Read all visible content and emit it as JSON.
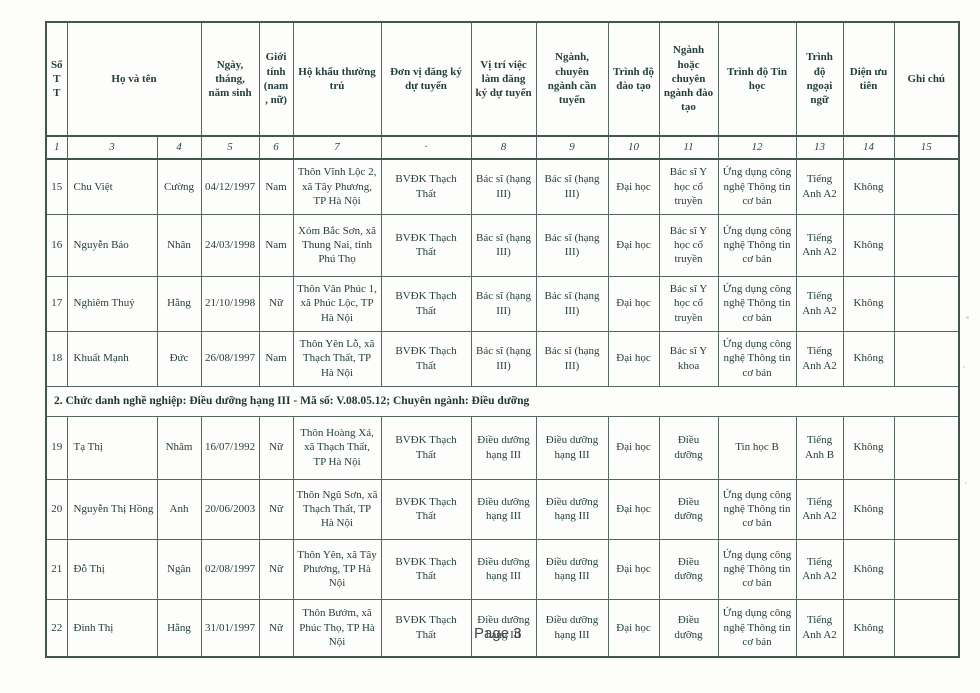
{
  "page": {
    "page_marker": "Page 3"
  },
  "colors": {
    "text": "#24403e",
    "border": "#56655f",
    "outer_border": "#44544e",
    "section_text": "#1d3734",
    "page_marker_text": "#43484c",
    "background": "#fdfdfb"
  },
  "table": {
    "headers": [
      "Số TT",
      "Họ và tên",
      "Ngày, tháng, năm sinh",
      "Giới tính (nam, nữ)",
      "Hộ khẩu thường trú",
      "Đơn vị đăng ký dự tuyển",
      "Vị trí việc làm đăng ký dự tuyển",
      "Ngành, chuyên ngành cần tuyển",
      "Trình độ đào tạo",
      "Ngành hoặc chuyên ngành đào tạo",
      "Trình độ Tin học",
      "Trình độ ngoại ngữ",
      "Diện ưu tiên",
      "Ghi chú"
    ],
    "column_numbers": [
      "1",
      "3",
      "4",
      "5",
      "6",
      "7",
      "·",
      "8",
      "9",
      "10",
      "11",
      "12",
      "13",
      "14",
      "15"
    ],
    "body": [
      {
        "type": "data",
        "cells": [
          "15",
          "Chu Việt",
          "Cường",
          "04/12/1997",
          "Nam",
          "Thôn Vĩnh Lộc 2, xã Tây Phương, TP Hà Nội",
          "BVĐK Thạch Thất",
          "Bác sĩ (hạng III)",
          "Bác sĩ (hạng III)",
          "Đại học",
          "Bác sĩ Y học cổ truyền",
          "Ứng dụng công nghệ Thông tin cơ bản",
          "Tiếng Anh A2",
          "Không",
          ""
        ]
      },
      {
        "type": "data",
        "cells": [
          "16",
          "Nguyễn Bảo",
          "Nhân",
          "24/03/1998",
          "Nam",
          "Xóm Bắc Sơn, xã Thung Nai, tỉnh Phú Thọ",
          "BVĐK Thạch Thất",
          "Bác sĩ (hạng III)",
          "Bác sĩ (hạng III)",
          "Đại học",
          "Bác sĩ Y học cổ truyền",
          "Ứng dụng công nghệ Thông tin cơ bản",
          "Tiếng Anh A2",
          "Không",
          ""
        ]
      },
      {
        "type": "data",
        "cells": [
          "17",
          "Nghiêm Thuý",
          "Hằng",
          "21/10/1998",
          "Nữ",
          "Thôn Vân Phúc 1, xã Phúc Lộc, TP Hà Nội",
          "BVĐK Thạch Thất",
          "Bác sĩ (hạng III)",
          "Bác sĩ (hạng III)",
          "Đại học",
          "Bác sĩ Y học cổ truyền",
          "Ứng dụng công nghệ Thông tin cơ bản",
          "Tiếng Anh A2",
          "Không",
          ""
        ]
      },
      {
        "type": "data",
        "cells": [
          "18",
          "Khuất Mạnh",
          "Đức",
          "26/08/1997",
          "Nam",
          "Thôn Yên Lỗ, xã Thạch Thất, TP Hà Nội",
          "BVĐK Thạch Thất",
          "Bác sĩ (hạng III)",
          "Bác sĩ (hạng III)",
          "Đại học",
          "Bác sĩ Y khoa",
          "Ứng dụng công nghệ Thông tin cơ bản",
          "Tiếng Anh A2",
          "Không",
          ""
        ]
      },
      {
        "type": "section",
        "text": "2. Chức danh nghề nghiệp: Điều dưỡng hạng III - Mã số: V.08.05.12; Chuyên ngành: Điều dưỡng"
      },
      {
        "type": "data",
        "cells": [
          "19",
          "Tạ Thị",
          "Nhâm",
          "16/07/1992",
          "Nữ",
          "Thôn Hoàng Xá, xã Thạch Thất, TP Hà Nội",
          "BVĐK Thạch Thất",
          "Điều dưỡng hạng III",
          "Điều dưỡng hạng III",
          "Đại học",
          "Điều dưỡng",
          "Tin học B",
          "Tiếng Anh B",
          "Không",
          ""
        ]
      },
      {
        "type": "data",
        "cells": [
          "20",
          "Nguyễn Thị Hồng",
          "Anh",
          "20/06/2003",
          "Nữ",
          "Thôn Ngũ Sơn, xã Thạch Thất, TP Hà Nội",
          "BVĐK Thạch Thất",
          "Điều dưỡng hạng III",
          "Điều dưỡng hạng III",
          "Đại học",
          "Điều dưỡng",
          "Ứng dụng công nghệ Thông tin cơ bản",
          "Tiếng Anh A2",
          "Không",
          ""
        ]
      },
      {
        "type": "data",
        "cells": [
          "21",
          "Đỗ Thị",
          "Ngân",
          "02/08/1997",
          "Nữ",
          "Thôn Yên, xã Tây Phương, TP Hà Nội",
          "BVĐK Thạch Thất",
          "Điều dưỡng hạng III",
          "Điều dưỡng hạng III",
          "Đại học",
          "Điều dưỡng",
          "Ứng dụng công nghệ Thông tin cơ bản",
          "Tiếng Anh A2",
          "Không",
          ""
        ]
      },
      {
        "type": "data",
        "cells": [
          "22",
          "Đinh Thị",
          "Hằng",
          "31/01/1997",
          "Nữ",
          "Thôn Bướm, xã Phúc Thọ, TP Hà Nội",
          "BVĐK Thạch Thất",
          "Điều dưỡng hạng III",
          "Điều dưỡng hạng III",
          "Đại học",
          "Điều dưỡng",
          "Ứng dụng công nghệ Thông tin cơ bản",
          "Tiếng Anh A2",
          "Không",
          ""
        ]
      }
    ]
  }
}
